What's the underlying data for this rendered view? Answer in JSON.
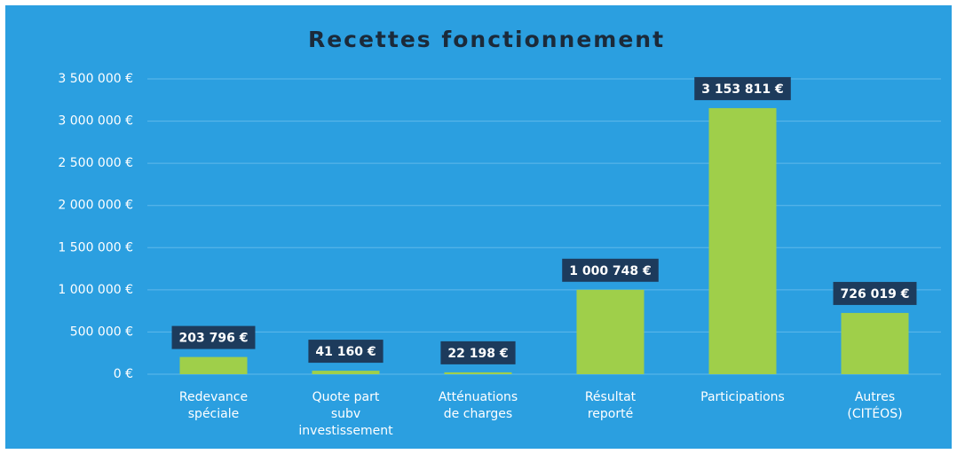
{
  "chart_data": {
    "type": "bar",
    "title": "Recettes fonctionnement",
    "categories": [
      "Redevance\nspéciale",
      "Quote part\nsubv\ninvestissement",
      "Atténuations\nde charges",
      "Résultat\nreporté",
      "Participations",
      "Autres\n(CITÉOS)"
    ],
    "values": [
      203796,
      41160,
      22198,
      1000748,
      3153811,
      726019
    ],
    "value_labels": [
      "203 796 €",
      "41 160 €",
      "22 198 €",
      "1 000 748 €",
      "3 153 811 €",
      "726 019 €"
    ],
    "color": "#9fcf4a",
    "ylim": [
      0,
      3500000
    ],
    "yticks": [
      {
        "value": 0,
        "label": "0 €"
      },
      {
        "value": 500000,
        "label": "500 000 €"
      },
      {
        "value": 1000000,
        "label": "1 000 000 €"
      },
      {
        "value": 1500000,
        "label": "1 500 000 €"
      },
      {
        "value": 2000000,
        "label": "2 000 000 €"
      },
      {
        "value": 2500000,
        "label": "2 500 000 €"
      },
      {
        "value": 3000000,
        "label": "3 000 000 €"
      },
      {
        "value": 3500000,
        "label": "3 500 000 €"
      }
    ],
    "grid": true
  }
}
